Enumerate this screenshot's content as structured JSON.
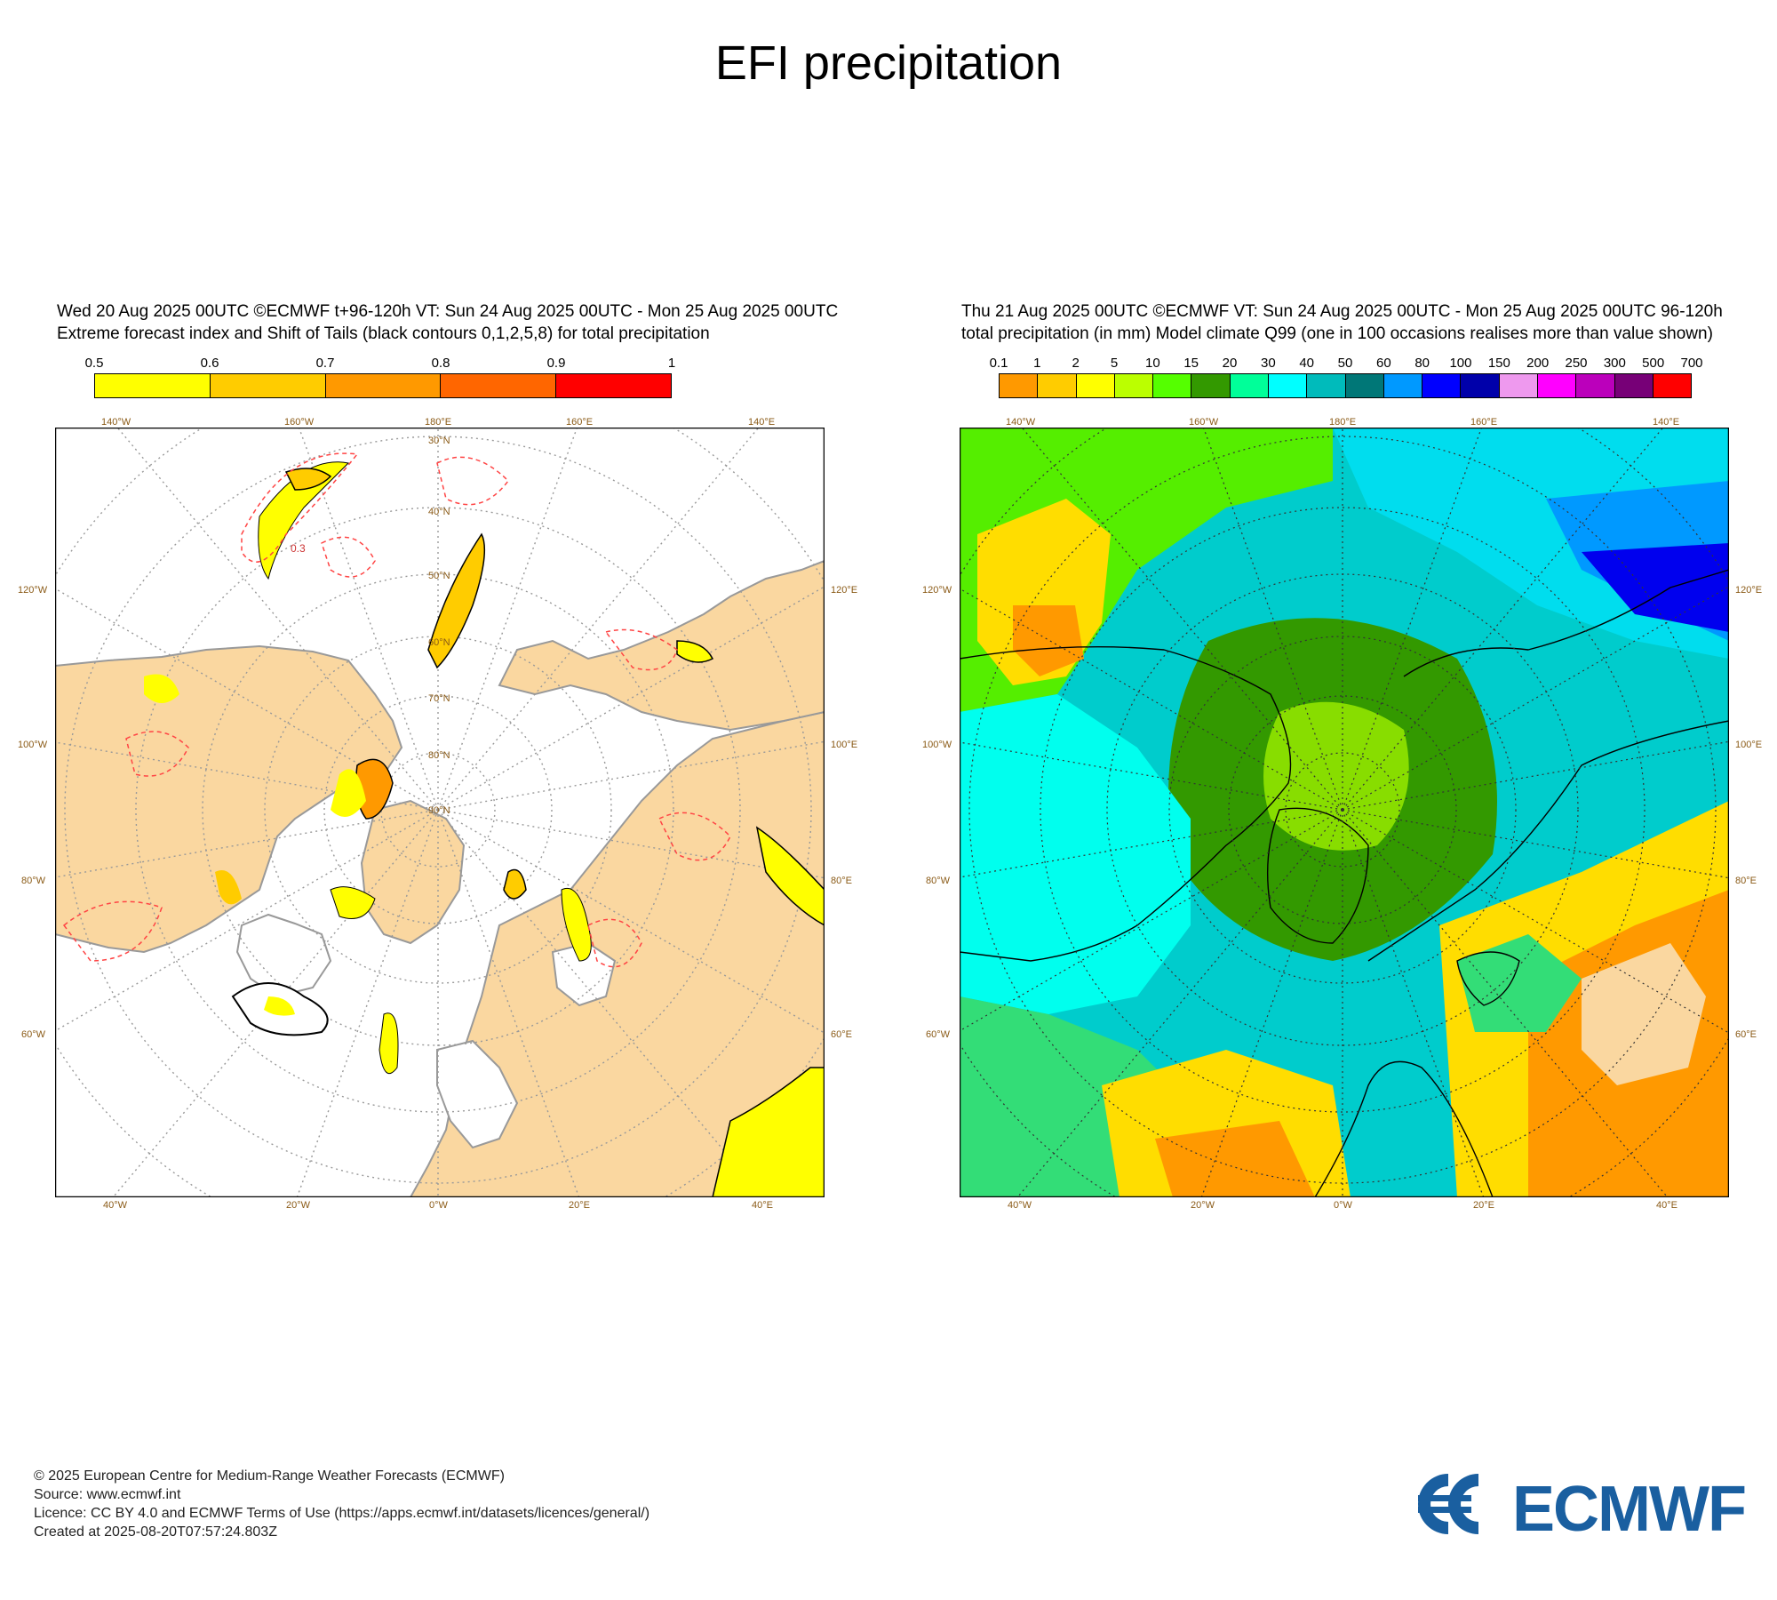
{
  "title": "EFI precipitation",
  "left_panel": {
    "title_line1": "Wed 20 Aug 2025 00UTC ©ECMWF t+96-120h  VT: Sun 24 Aug 2025 00UTC  - Mon 25 Aug 2025 00UTC",
    "title_line2": "Extreme forecast index and Shift of Tails (black contours 0,1,2,5,8) for total precipitation",
    "colorbar": {
      "labels": [
        "0.5",
        "0.6",
        "0.7",
        "0.8",
        "0.9",
        "1"
      ],
      "colors": [
        "#ffff00",
        "#ffcc00",
        "#ff9900",
        "#ff6600",
        "#ff0000"
      ]
    },
    "map_background": "#ffffff",
    "land_color": "#fad7a0",
    "contour_label": "0.3",
    "top_lon_labels": [
      "140°W",
      "160°W",
      "180°E",
      "160°E",
      "140°E"
    ],
    "bottom_lon_labels": [
      "40°W",
      "20°W",
      "0°W",
      "20°E",
      "40°E"
    ],
    "left_lat_labels": [
      "120°W",
      "100°W",
      "80°W",
      "60°W"
    ],
    "right_lat_labels": [
      "120°E",
      "100°E",
      "80°E",
      "60°E"
    ],
    "inner_labels": [
      "30°N",
      "40°N",
      "50°N",
      "60°N",
      "70°N",
      "80°N",
      "90°N"
    ]
  },
  "right_panel": {
    "title_line1": "Thu 21 Aug 2025 00UTC ©ECMWF VT: Sun 24 Aug 2025 00UTC - Mon 25 Aug 2025 00UTC   96-120h",
    "title_line2": "total precipitation (in mm)  Model climate Q99 (one in 100 occasions realises more than value shown)",
    "colorbar": {
      "labels": [
        "0.1",
        "1",
        "2",
        "5",
        "10",
        "15",
        "20",
        "30",
        "40",
        "50",
        "60",
        "80",
        "100",
        "150",
        "200",
        "250",
        "300",
        "500",
        "700"
      ],
      "colors": [
        "#ff9900",
        "#ffcc00",
        "#ffff00",
        "#bbff00",
        "#55ff00",
        "#339900",
        "#00ff99",
        "#00ffff",
        "#00bbbb",
        "#007777",
        "#0099ff",
        "#0000ff",
        "#0000aa",
        "#ee99ee",
        "#ff00ff",
        "#bb00bb",
        "#770077",
        "#ff0000"
      ]
    },
    "top_lon_labels": [
      "140°W",
      "160°W",
      "180°E",
      "160°E",
      "140°E"
    ],
    "bottom_lon_labels": [
      "40°W",
      "20°W",
      "0°W",
      "20°E",
      "40°E"
    ],
    "left_lat_labels": [
      "120°W",
      "100°W",
      "80°W",
      "60°W"
    ],
    "right_lat_labels": [
      "120°E",
      "100°E",
      "80°E",
      "60°E"
    ]
  },
  "footer": {
    "line1": "© 2025 European Centre for Medium-Range Weather Forecasts (ECMWF)",
    "line2": "Source: www.ecmwf.int",
    "line3": "Licence: CC BY 4.0 and ECMWF Terms of Use (https://apps.ecmwf.int/datasets/licences/general/)",
    "line4": "Created at 2025-08-20T07:57:24.803Z"
  },
  "logo": {
    "text": "ECMWF",
    "color": "#1a5fa0"
  }
}
